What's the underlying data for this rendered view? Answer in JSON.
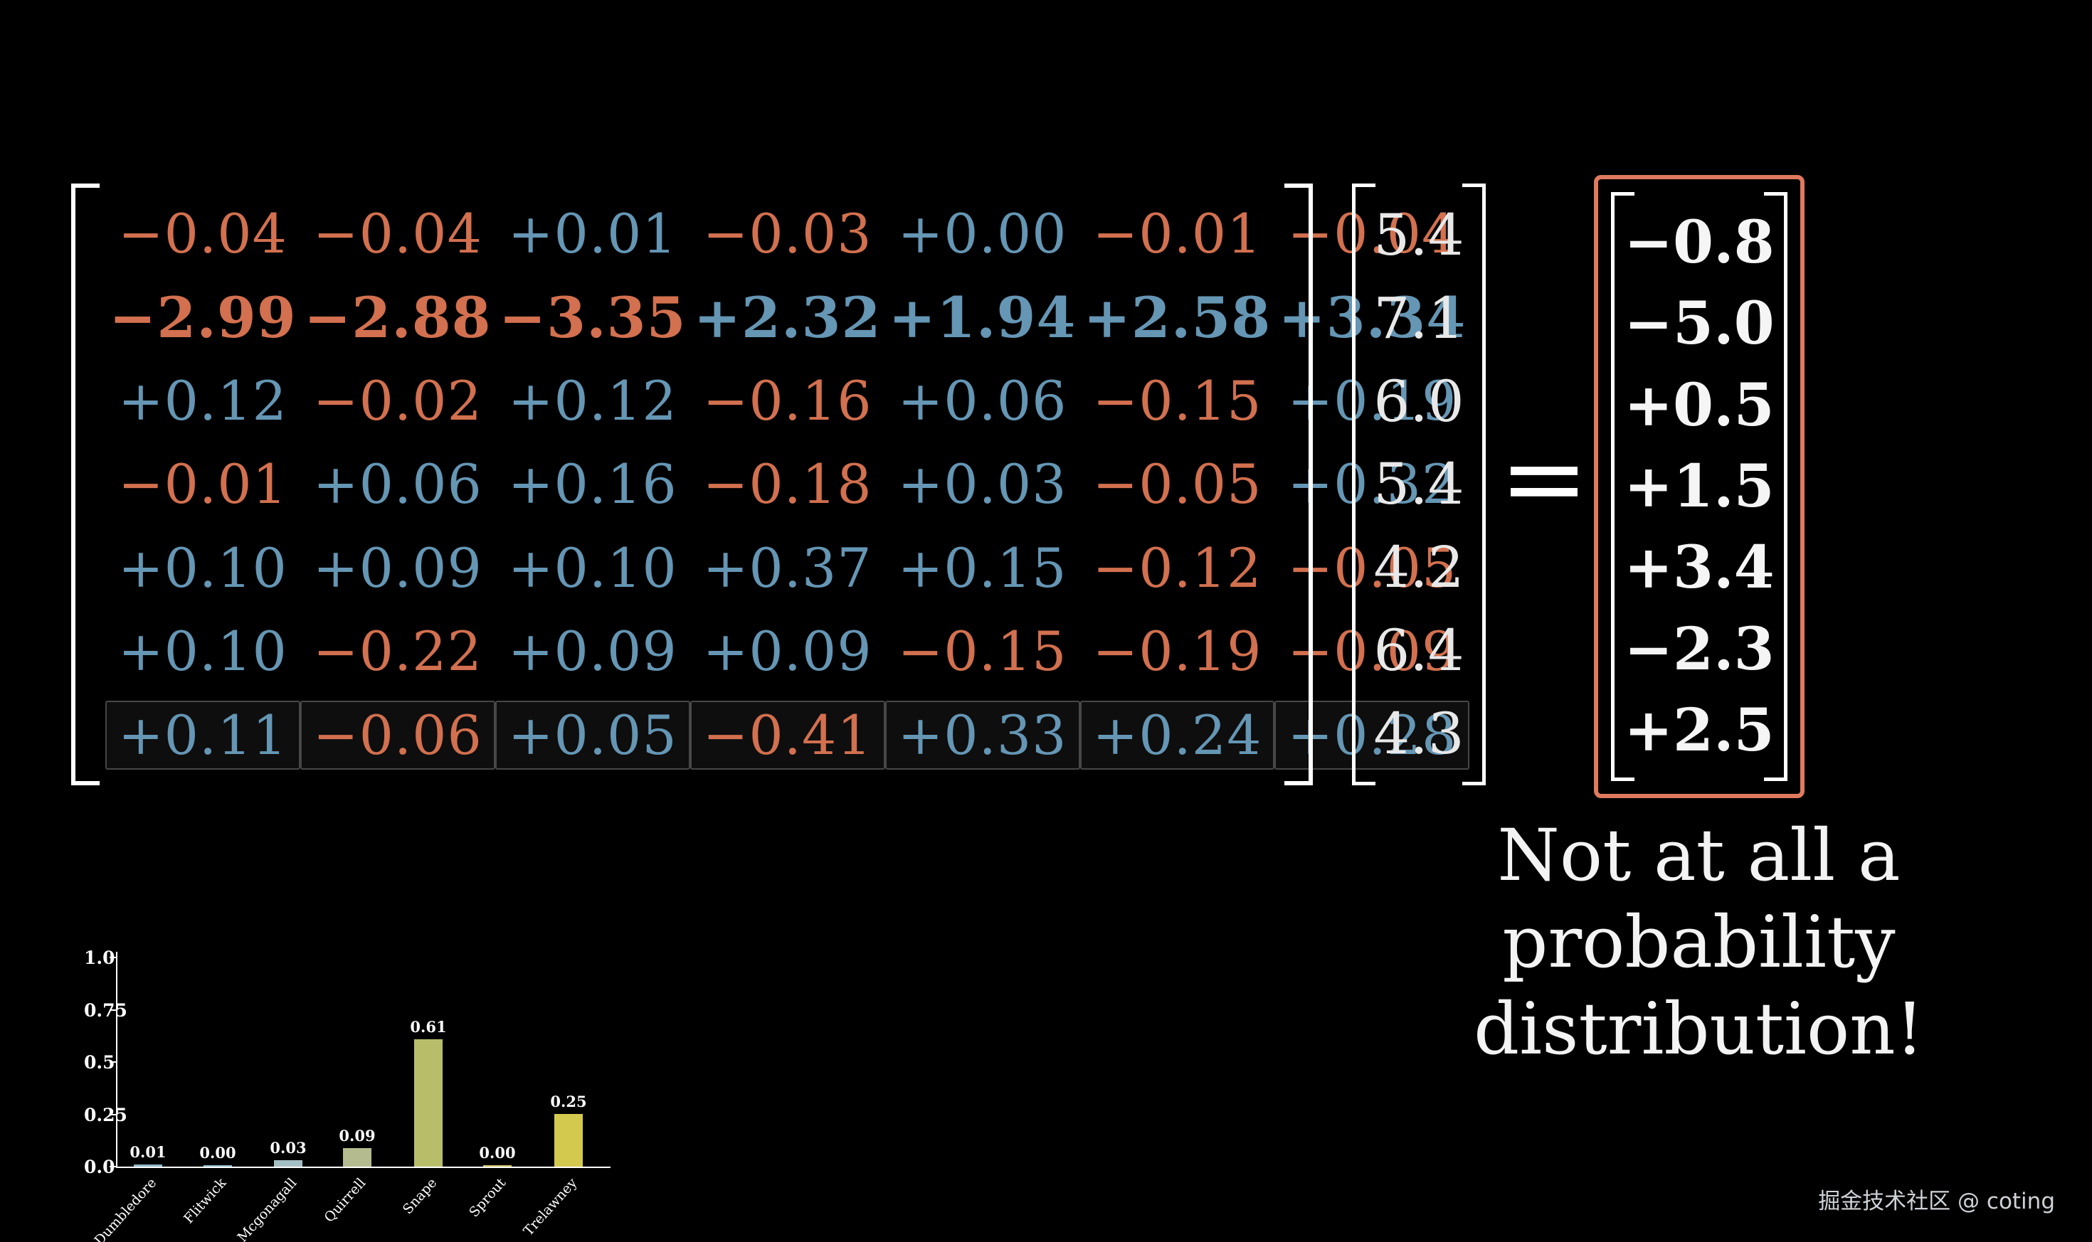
{
  "colors": {
    "negative": "#d2704f",
    "positive": "#6596b4",
    "vector": "#e8e8e8",
    "output_text": "#f5f5f5",
    "output_box_border": "#e07a5f"
  },
  "matrix": {
    "rows": [
      [
        "−0.04",
        "−0.04",
        "+0.01",
        "−0.03",
        "+0.00",
        "−0.01",
        "−0.04"
      ],
      [
        "−2.99",
        "−2.88",
        "−3.35",
        "+2.32",
        "+1.94",
        "+2.58",
        "+3.34"
      ],
      [
        "+0.12",
        "−0.02",
        "+0.12",
        "−0.16",
        "+0.06",
        "−0.15",
        "+0.19"
      ],
      [
        "−0.01",
        "+0.06",
        "+0.16",
        "−0.18",
        "+0.03",
        "−0.05",
        "+0.32"
      ],
      [
        "+0.10",
        "+0.09",
        "+0.10",
        "+0.37",
        "+0.15",
        "−0.12",
        "−0.05"
      ],
      [
        "+0.10",
        "−0.22",
        "+0.09",
        "+0.09",
        "−0.15",
        "−0.19",
        "−0.09"
      ],
      [
        "+0.11",
        "−0.06",
        "+0.05",
        "−0.41",
        "+0.33",
        "+0.24",
        "+0.28"
      ]
    ]
  },
  "input_vector": [
    "5.4",
    "7.1",
    "6.0",
    "5.4",
    "4.2",
    "6.4",
    "4.3"
  ],
  "equation": {
    "equals": "="
  },
  "output_vector": [
    "−0.8",
    "−5.0",
    "+0.5",
    "+1.5",
    "+3.4",
    "−2.3",
    "+2.5"
  ],
  "caption": {
    "line1": "Not at all a",
    "line2": "probability distribution!"
  },
  "chart_data": {
    "type": "bar",
    "categories": [
      "Dumbledore",
      "Flitwick",
      "Mcgonagall",
      "Quirrell",
      "Snape",
      "Sprout",
      "Trelawney"
    ],
    "values": [
      0.01,
      0.0,
      0.03,
      0.09,
      0.61,
      0.0,
      0.25
    ],
    "value_labels": [
      "0.01",
      "0.00",
      "0.03",
      "0.09",
      "0.61",
      "0.00",
      "0.25"
    ],
    "bar_colors": [
      "#8fb8c9",
      "#8fb8c9",
      "#a5c0c4",
      "#b4bb8e",
      "#b8bd6a",
      "#cdc266",
      "#d4c94f"
    ],
    "yticks": [
      "1.0",
      "0.75",
      "0.5",
      "0.25",
      "0.0"
    ],
    "ylim": [
      0,
      1.0
    ],
    "title": "",
    "xlabel": "",
    "ylabel": "",
    "grid": false,
    "legend": "none"
  },
  "watermark": "掘金技术社区 @ coting"
}
